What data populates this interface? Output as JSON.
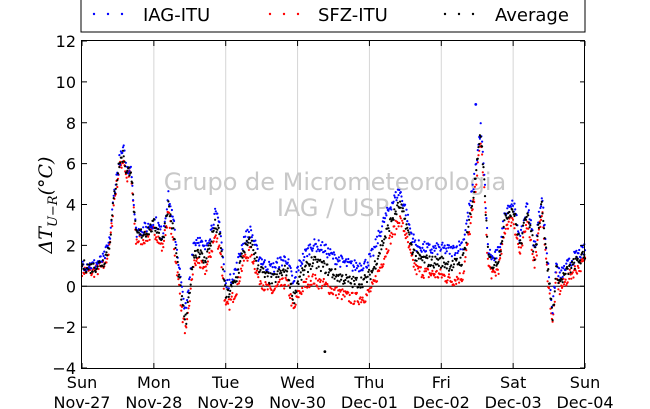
{
  "chart_data": {
    "type": "scatter",
    "ylabel": "ΔT_{U−R}(°C)",
    "ylabel_main": "ΔT",
    "ylabel_sub": "U−R",
    "ylabel_unit": "(°C)",
    "ylim": [
      -4,
      12
    ],
    "yticks": [
      "−4",
      "−2",
      "0",
      "2",
      "4",
      "6",
      "8",
      "10",
      "12"
    ],
    "xlim": [
      "2011-11-27",
      "2011-12-04"
    ],
    "xticks": [
      {
        "day": "Sun",
        "date": "Nov-27"
      },
      {
        "day": "Mon",
        "date": "Nov-28"
      },
      {
        "day": "Tue",
        "date": "Nov-29"
      },
      {
        "day": "Wed",
        "date": "Nov-30"
      },
      {
        "day": "Thu",
        "date": "Dec-01"
      },
      {
        "day": "Fri",
        "date": "Dec-02"
      },
      {
        "day": "Sat",
        "date": "Dec-03"
      },
      {
        "day": "Sun",
        "date": "Dec-04"
      }
    ],
    "grid": "vertical",
    "zero_line": true,
    "legend_position": "top, outside plot",
    "watermark": [
      "Grupo de Micrometeorologia",
      "IAG / USP"
    ],
    "series": [
      {
        "name": "IAG-ITU",
        "color": "#0000ff"
      },
      {
        "name": "SFZ-ITU",
        "color": "#ff0000"
      },
      {
        "name": "Average",
        "color": "#000000"
      }
    ],
    "avg_days": [
      0.0,
      0.15,
      0.3,
      0.38,
      0.45,
      0.52,
      0.58,
      0.62,
      0.68,
      0.75,
      0.85,
      0.95,
      1.0,
      1.05,
      1.12,
      1.2,
      1.28,
      1.35,
      1.4,
      1.45,
      1.55,
      1.62,
      1.7,
      1.78,
      1.85,
      1.92,
      2.0,
      2.05,
      2.15,
      2.25,
      2.35,
      2.45,
      2.55,
      2.65,
      2.75,
      2.85,
      2.95,
      3.0,
      3.1,
      3.2,
      3.35,
      3.5,
      3.62,
      3.75,
      3.85,
      3.95,
      4.05,
      4.15,
      4.3,
      4.42,
      4.5,
      4.58,
      4.65,
      4.75,
      4.85,
      5.0,
      5.15,
      5.3,
      5.45,
      5.5,
      5.55,
      5.6,
      5.65,
      5.72,
      5.8,
      5.9,
      6.0,
      6.1,
      6.2,
      6.3,
      6.4,
      6.45,
      6.55,
      6.6,
      6.65,
      6.75,
      6.85,
      7.0
    ],
    "avg_values": [
      1.0,
      0.9,
      1.2,
      2.0,
      4.5,
      6.0,
      6.5,
      5.5,
      5.8,
      2.5,
      2.6,
      2.8,
      3.0,
      2.8,
      2.2,
      4.0,
      2.5,
      0.5,
      -1.0,
      -1.8,
      1.5,
      1.8,
      1.2,
      2.0,
      3.0,
      2.5,
      -0.5,
      -0.3,
      0.4,
      1.8,
      2.2,
      1.0,
      0.5,
      0.3,
      0.6,
      0.8,
      -0.6,
      0.2,
      0.8,
      1.2,
      1.0,
      0.6,
      0.4,
      0.2,
      0.2,
      0.3,
      0.8,
      1.8,
      3.2,
      4.0,
      3.2,
      2.0,
      1.4,
      1.3,
      1.2,
      1.2,
      1.0,
      1.3,
      4.5,
      6.0,
      7.5,
      5.0,
      1.5,
      1.0,
      1.4,
      3.5,
      3.8,
      2.0,
      3.8,
      1.5,
      4.2,
      2.0,
      -1.5,
      0.8,
      0.2,
      0.7,
      1.1,
      1.5
    ],
    "iag_offset_days": [
      0.0,
      1.0,
      1.3,
      1.5,
      2.0,
      2.3,
      2.9,
      3.3,
      3.6,
      4.0,
      4.2,
      4.5,
      4.9,
      5.3,
      5.55,
      5.7,
      6.0,
      6.3,
      6.6,
      7.0
    ],
    "iag_offset_values": [
      0.1,
      0.2,
      0.5,
      0.6,
      0.5,
      0.5,
      0.6,
      0.9,
      0.8,
      0.8,
      0.9,
      0.6,
      0.6,
      0.8,
      0.3,
      0.3,
      0.3,
      0.3,
      0.3,
      0.3
    ],
    "sfz_offset_days": [
      0.0,
      1.0,
      1.3,
      1.5,
      2.0,
      2.3,
      2.9,
      3.3,
      3.6,
      4.0,
      4.2,
      4.5,
      4.9,
      5.3,
      5.55,
      5.7,
      6.0,
      6.3,
      6.6,
      7.0
    ],
    "sfz_offset_values": [
      -0.2,
      -0.3,
      -0.5,
      -0.5,
      -0.6,
      -0.5,
      -0.6,
      -0.9,
      -0.8,
      -0.8,
      -0.9,
      -0.6,
      -0.6,
      -0.8,
      -0.3,
      -0.5,
      -0.5,
      -0.5,
      -0.4,
      -0.3
    ],
    "outliers": [
      {
        "series": "Average",
        "day": 3.38,
        "value": -3.2
      },
      {
        "series": "IAG-ITU",
        "day": 5.48,
        "value": 8.9
      }
    ]
  }
}
